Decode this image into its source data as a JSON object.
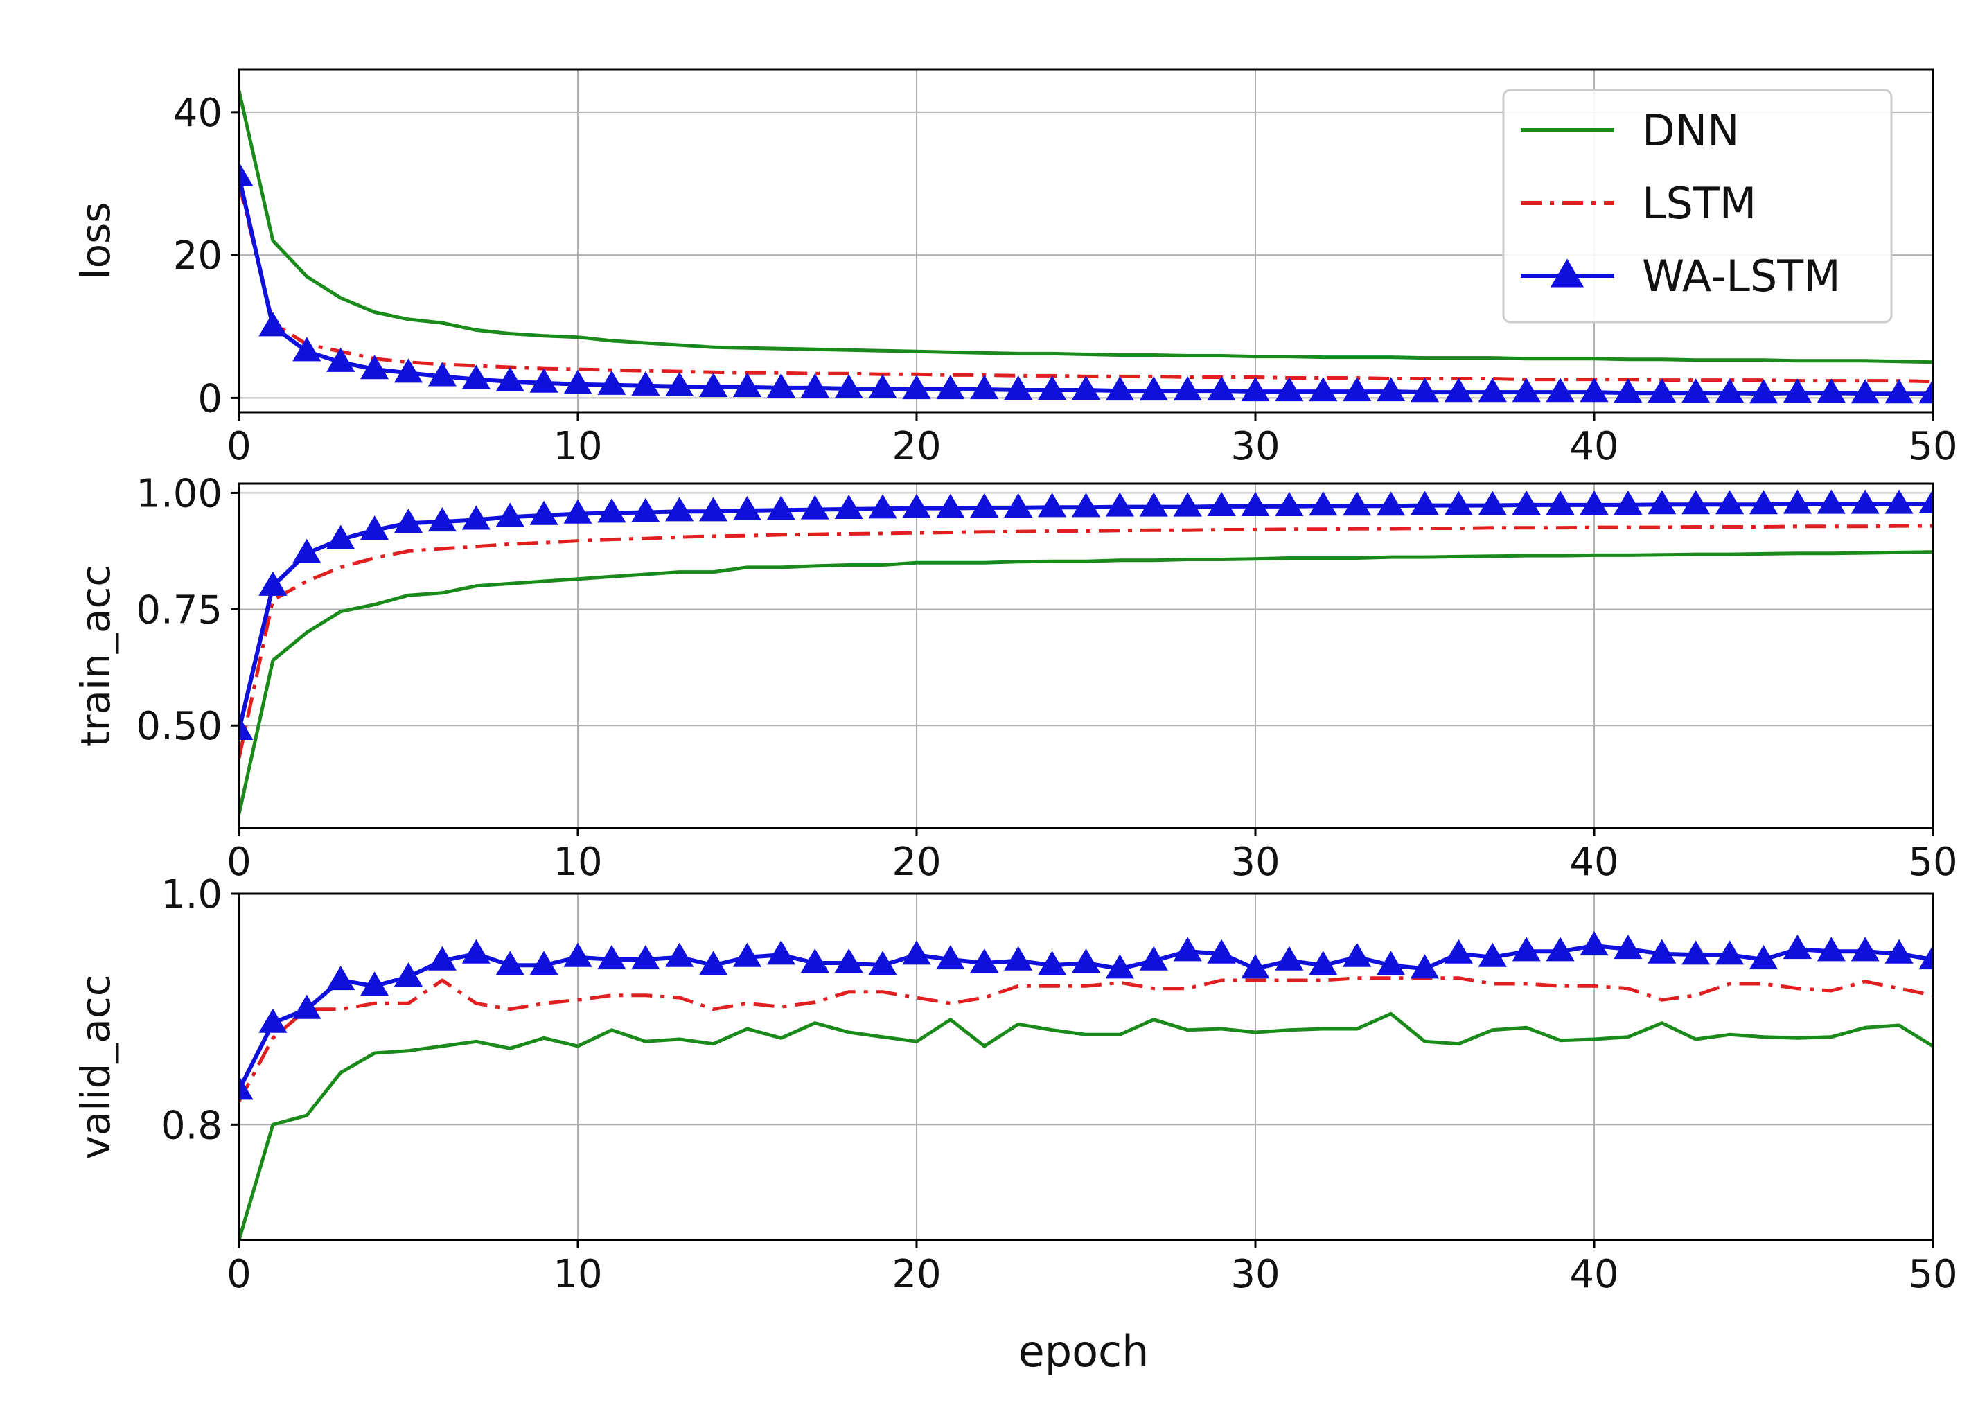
{
  "figure": {
    "xlabel": "epoch",
    "legend": {
      "placement": "top-right of the first panel",
      "entries": [
        {
          "label": "DNN",
          "series": "dnn",
          "color": "#1a8a1a",
          "style": "solid"
        },
        {
          "label": "LSTM",
          "series": "lstm",
          "color": "#e02020",
          "style": "dash-dot"
        },
        {
          "label": "WA-LSTM",
          "series": "wa",
          "color": "#1010dd",
          "style": "solid-triangle-markers"
        }
      ]
    },
    "colors": {
      "dnn": "#1a8a1a",
      "lstm": "#e02020",
      "wa": "#1010dd",
      "grid": "#b0b0b0",
      "axis": "#000000"
    }
  },
  "chart_data": [
    {
      "type": "line",
      "title": "",
      "xlabel": "",
      "ylabel": "loss",
      "xlim": [
        0,
        50
      ],
      "ylim": [
        -2,
        46
      ],
      "xticks": [
        0,
        10,
        20,
        30,
        40,
        50
      ],
      "yticks": [
        0,
        20,
        40
      ],
      "ytick_labels": [
        "0",
        "20",
        "40"
      ],
      "grid": true,
      "x": [
        0,
        1,
        2,
        3,
        4,
        5,
        6,
        7,
        8,
        9,
        10,
        11,
        12,
        13,
        14,
        15,
        16,
        17,
        18,
        19,
        20,
        21,
        22,
        23,
        24,
        25,
        26,
        27,
        28,
        29,
        30,
        31,
        32,
        33,
        34,
        35,
        36,
        37,
        38,
        39,
        40,
        41,
        42,
        43,
        44,
        45,
        46,
        47,
        48,
        49,
        50
      ],
      "series": [
        {
          "name": "DNN",
          "key": "dnn",
          "values": [
            43.0,
            22.0,
            17.0,
            14.0,
            12.0,
            11.0,
            10.5,
            9.5,
            9.0,
            8.7,
            8.5,
            8.0,
            7.7,
            7.4,
            7.1,
            7.0,
            6.9,
            6.8,
            6.7,
            6.6,
            6.5,
            6.4,
            6.3,
            6.2,
            6.2,
            6.1,
            6.0,
            6.0,
            5.9,
            5.9,
            5.8,
            5.8,
            5.7,
            5.7,
            5.7,
            5.6,
            5.6,
            5.6,
            5.5,
            5.5,
            5.5,
            5.4,
            5.4,
            5.3,
            5.3,
            5.3,
            5.2,
            5.2,
            5.2,
            5.1,
            5.0
          ]
        },
        {
          "name": "LSTM",
          "key": "lstm",
          "values": [
            30.0,
            10.5,
            7.5,
            6.5,
            5.5,
            5.0,
            4.7,
            4.5,
            4.3,
            4.1,
            4.0,
            3.9,
            3.8,
            3.7,
            3.6,
            3.5,
            3.5,
            3.4,
            3.4,
            3.3,
            3.3,
            3.2,
            3.2,
            3.1,
            3.1,
            3.0,
            3.0,
            3.0,
            2.9,
            2.9,
            2.9,
            2.8,
            2.8,
            2.8,
            2.7,
            2.7,
            2.7,
            2.7,
            2.6,
            2.6,
            2.6,
            2.6,
            2.5,
            2.5,
            2.5,
            2.5,
            2.4,
            2.4,
            2.4,
            2.4,
            2.3
          ]
        },
        {
          "name": "WA-LSTM",
          "key": "wa",
          "values": [
            31.0,
            10.0,
            6.5,
            5.0,
            4.0,
            3.5,
            3.0,
            2.6,
            2.3,
            2.1,
            1.9,
            1.8,
            1.7,
            1.6,
            1.5,
            1.5,
            1.4,
            1.4,
            1.3,
            1.3,
            1.2,
            1.2,
            1.2,
            1.1,
            1.1,
            1.1,
            1.0,
            1.0,
            1.0,
            1.0,
            0.9,
            0.9,
            0.9,
            0.9,
            0.9,
            0.8,
            0.8,
            0.8,
            0.8,
            0.8,
            0.8,
            0.7,
            0.7,
            0.7,
            0.7,
            0.6,
            0.7,
            0.7,
            0.6,
            0.6,
            0.6
          ]
        }
      ]
    },
    {
      "type": "line",
      "title": "",
      "xlabel": "",
      "ylabel": "train_acc",
      "xlim": [
        0,
        50
      ],
      "ylim": [
        0.28,
        1.02
      ],
      "xticks": [
        0,
        10,
        20,
        30,
        40,
        50
      ],
      "yticks": [
        0.5,
        0.75,
        1.0
      ],
      "ytick_labels": [
        "0.50",
        "0.75",
        "1.00"
      ],
      "grid": true,
      "x": [
        0,
        1,
        2,
        3,
        4,
        5,
        6,
        7,
        8,
        9,
        10,
        11,
        12,
        13,
        14,
        15,
        16,
        17,
        18,
        19,
        20,
        21,
        22,
        23,
        24,
        25,
        26,
        27,
        28,
        29,
        30,
        31,
        32,
        33,
        34,
        35,
        36,
        37,
        38,
        39,
        40,
        41,
        42,
        43,
        44,
        45,
        46,
        47,
        48,
        49,
        50
      ],
      "series": [
        {
          "name": "DNN",
          "key": "dnn",
          "values": [
            0.31,
            0.64,
            0.7,
            0.745,
            0.76,
            0.78,
            0.785,
            0.8,
            0.805,
            0.81,
            0.815,
            0.82,
            0.825,
            0.83,
            0.83,
            0.84,
            0.84,
            0.843,
            0.845,
            0.845,
            0.85,
            0.85,
            0.85,
            0.852,
            0.853,
            0.853,
            0.855,
            0.855,
            0.857,
            0.857,
            0.858,
            0.86,
            0.86,
            0.86,
            0.862,
            0.862,
            0.863,
            0.864,
            0.865,
            0.865,
            0.866,
            0.866,
            0.867,
            0.868,
            0.868,
            0.869,
            0.87,
            0.87,
            0.871,
            0.872,
            0.873
          ]
        },
        {
          "name": "LSTM",
          "key": "lstm",
          "values": [
            0.43,
            0.77,
            0.81,
            0.84,
            0.86,
            0.875,
            0.88,
            0.885,
            0.89,
            0.893,
            0.897,
            0.9,
            0.902,
            0.905,
            0.907,
            0.908,
            0.91,
            0.911,
            0.912,
            0.913,
            0.914,
            0.915,
            0.916,
            0.917,
            0.918,
            0.918,
            0.919,
            0.92,
            0.92,
            0.921,
            0.921,
            0.922,
            0.922,
            0.923,
            0.923,
            0.924,
            0.924,
            0.925,
            0.925,
            0.925,
            0.926,
            0.926,
            0.926,
            0.927,
            0.927,
            0.927,
            0.928,
            0.928,
            0.928,
            0.929,
            0.929
          ]
        },
        {
          "name": "WA-LSTM",
          "key": "wa",
          "values": [
            0.49,
            0.8,
            0.87,
            0.9,
            0.92,
            0.935,
            0.938,
            0.942,
            0.948,
            0.952,
            0.955,
            0.957,
            0.958,
            0.96,
            0.96,
            0.962,
            0.963,
            0.964,
            0.965,
            0.966,
            0.967,
            0.967,
            0.968,
            0.968,
            0.969,
            0.969,
            0.97,
            0.97,
            0.97,
            0.971,
            0.971,
            0.971,
            0.972,
            0.972,
            0.972,
            0.973,
            0.973,
            0.973,
            0.974,
            0.974,
            0.974,
            0.974,
            0.975,
            0.975,
            0.975,
            0.975,
            0.976,
            0.976,
            0.976,
            0.976,
            0.977
          ]
        }
      ]
    },
    {
      "type": "line",
      "title": "",
      "xlabel": "epoch",
      "ylabel": "valid_acc",
      "xlim": [
        0,
        50
      ],
      "ylim": [
        0.7,
        1.0
      ],
      "xticks": [
        0,
        10,
        20,
        30,
        40,
        50
      ],
      "yticks": [
        0.8,
        1.0
      ],
      "ytick_labels": [
        "0.8",
        "1.0"
      ],
      "grid": true,
      "x": [
        0,
        1,
        2,
        3,
        4,
        5,
        6,
        7,
        8,
        9,
        10,
        11,
        12,
        13,
        14,
        15,
        16,
        17,
        18,
        19,
        20,
        21,
        22,
        23,
        24,
        25,
        26,
        27,
        28,
        29,
        30,
        31,
        32,
        33,
        34,
        35,
        36,
        37,
        38,
        39,
        40,
        41,
        42,
        43,
        44,
        45,
        46,
        47,
        48,
        49,
        50
      ],
      "series": [
        {
          "name": "DNN",
          "key": "dnn",
          "values": [
            0.7,
            0.8,
            0.808,
            0.845,
            0.862,
            0.864,
            0.868,
            0.872,
            0.866,
            0.875,
            0.868,
            0.882,
            0.872,
            0.874,
            0.87,
            0.883,
            0.875,
            0.888,
            0.88,
            0.876,
            0.872,
            0.891,
            0.868,
            0.887,
            0.882,
            0.878,
            0.878,
            0.891,
            0.882,
            0.883,
            0.88,
            0.882,
            0.883,
            0.883,
            0.896,
            0.872,
            0.87,
            0.882,
            0.884,
            0.873,
            0.874,
            0.876,
            0.888,
            0.874,
            0.878,
            0.876,
            0.875,
            0.876,
            0.884,
            0.886,
            0.868
          ]
        },
        {
          "name": "LSTM",
          "key": "lstm",
          "values": [
            0.82,
            0.875,
            0.9,
            0.9,
            0.905,
            0.905,
            0.925,
            0.905,
            0.9,
            0.905,
            0.908,
            0.912,
            0.912,
            0.91,
            0.9,
            0.905,
            0.902,
            0.906,
            0.915,
            0.915,
            0.91,
            0.905,
            0.91,
            0.92,
            0.92,
            0.92,
            0.923,
            0.918,
            0.918,
            0.925,
            0.925,
            0.925,
            0.925,
            0.927,
            0.927,
            0.927,
            0.927,
            0.922,
            0.922,
            0.92,
            0.92,
            0.918,
            0.908,
            0.912,
            0.922,
            0.922,
            0.918,
            0.916,
            0.924,
            0.918,
            0.912
          ]
        },
        {
          "name": "WA-LSTM",
          "key": "wa",
          "values": [
            0.83,
            0.888,
            0.9,
            0.925,
            0.92,
            0.928,
            0.942,
            0.948,
            0.938,
            0.938,
            0.945,
            0.943,
            0.943,
            0.945,
            0.938,
            0.945,
            0.947,
            0.94,
            0.94,
            0.938,
            0.947,
            0.943,
            0.94,
            0.942,
            0.938,
            0.94,
            0.935,
            0.942,
            0.95,
            0.948,
            0.935,
            0.942,
            0.938,
            0.945,
            0.938,
            0.935,
            0.948,
            0.945,
            0.95,
            0.95,
            0.955,
            0.952,
            0.948,
            0.947,
            0.947,
            0.943,
            0.952,
            0.95,
            0.95,
            0.948,
            0.943
          ]
        }
      ]
    }
  ]
}
